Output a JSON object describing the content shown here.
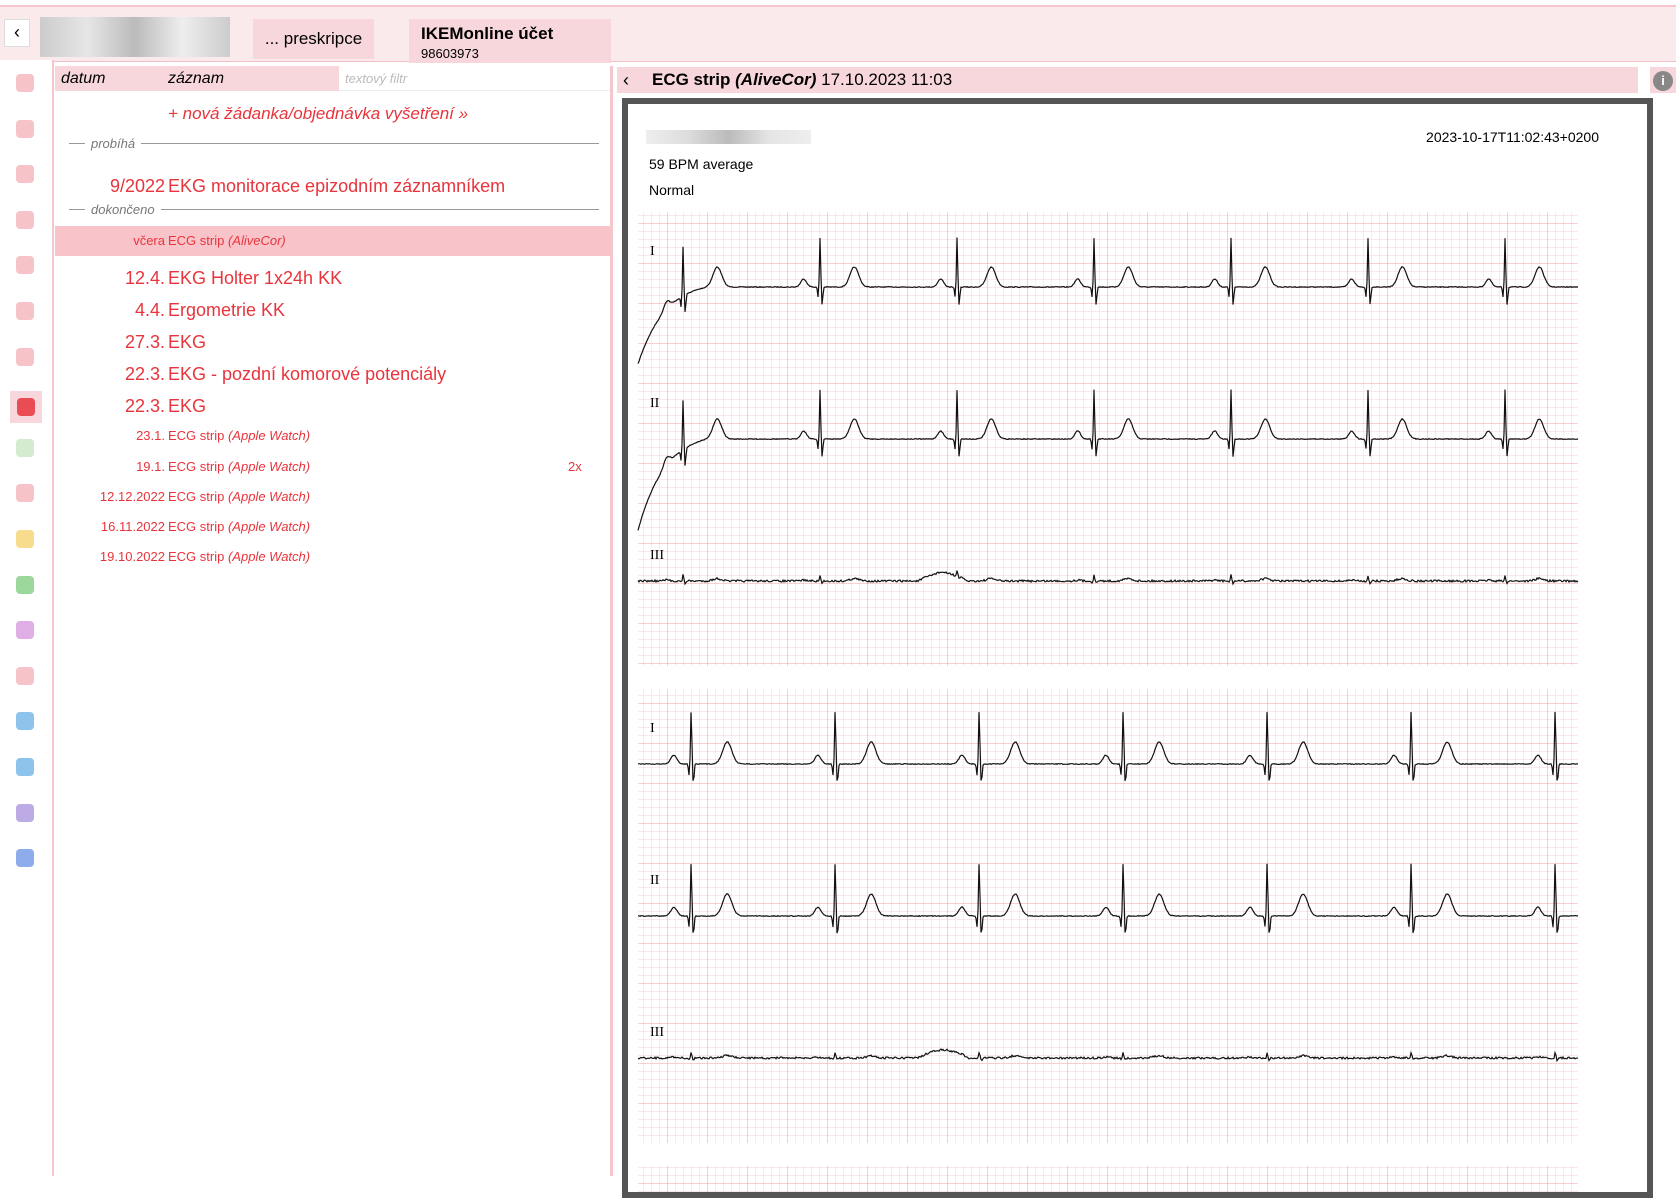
{
  "top_bar": {
    "tab": "... preskripce",
    "account": {
      "title": "IKEMonline účet",
      "id": "98603973"
    }
  },
  "list": {
    "headers": [
      "datum",
      "záznam"
    ],
    "filter_placeholder": "textový filtr",
    "new_request": "+ nová žádanka/objednávka vyšetření »",
    "groups": [
      {
        "label": "probíhá",
        "items": [
          {
            "date": "9/2022",
            "title": "EKG monitorace epizodním záznamníkem"
          }
        ]
      },
      {
        "label": "dokončeno",
        "items": [
          {
            "date": "včera",
            "title": "ECG strip",
            "source": "(AliveCor)"
          },
          {
            "date": "12.4.",
            "title": "EKG Holter 1x24h KK"
          },
          {
            "date": "4.4.",
            "title": "Ergometrie KK"
          },
          {
            "date": "27.3.",
            "title": "EKG"
          },
          {
            "date": "22.3.",
            "title": "EKG - pozdní komorové potenciály"
          },
          {
            "date": "22.3.",
            "title": "EKG"
          },
          {
            "date": "23.1.",
            "title": "ECG strip",
            "source": "(Apple Watch)"
          },
          {
            "date": "19.1.",
            "title": "ECG strip",
            "source": "(Apple Watch)",
            "count": "2x"
          },
          {
            "date": "12.12.2022",
            "title": "ECG strip",
            "source": "(Apple Watch)"
          },
          {
            "date": "16.11.2022",
            "title": "ECG strip",
            "source": "(Apple Watch)"
          },
          {
            "date": "19.10.2022",
            "title": "ECG strip",
            "source": "(Apple Watch)"
          }
        ]
      }
    ]
  },
  "detail": {
    "title": "ECG strip",
    "source": "(AliveCor)",
    "datetime": "17.10.2023 11:03",
    "timestamp": "2023-10-17T11:02:43+0200",
    "bpm": "59 BPM average",
    "result": "Normal",
    "leads": [
      "I",
      "II",
      "III"
    ]
  }
}
